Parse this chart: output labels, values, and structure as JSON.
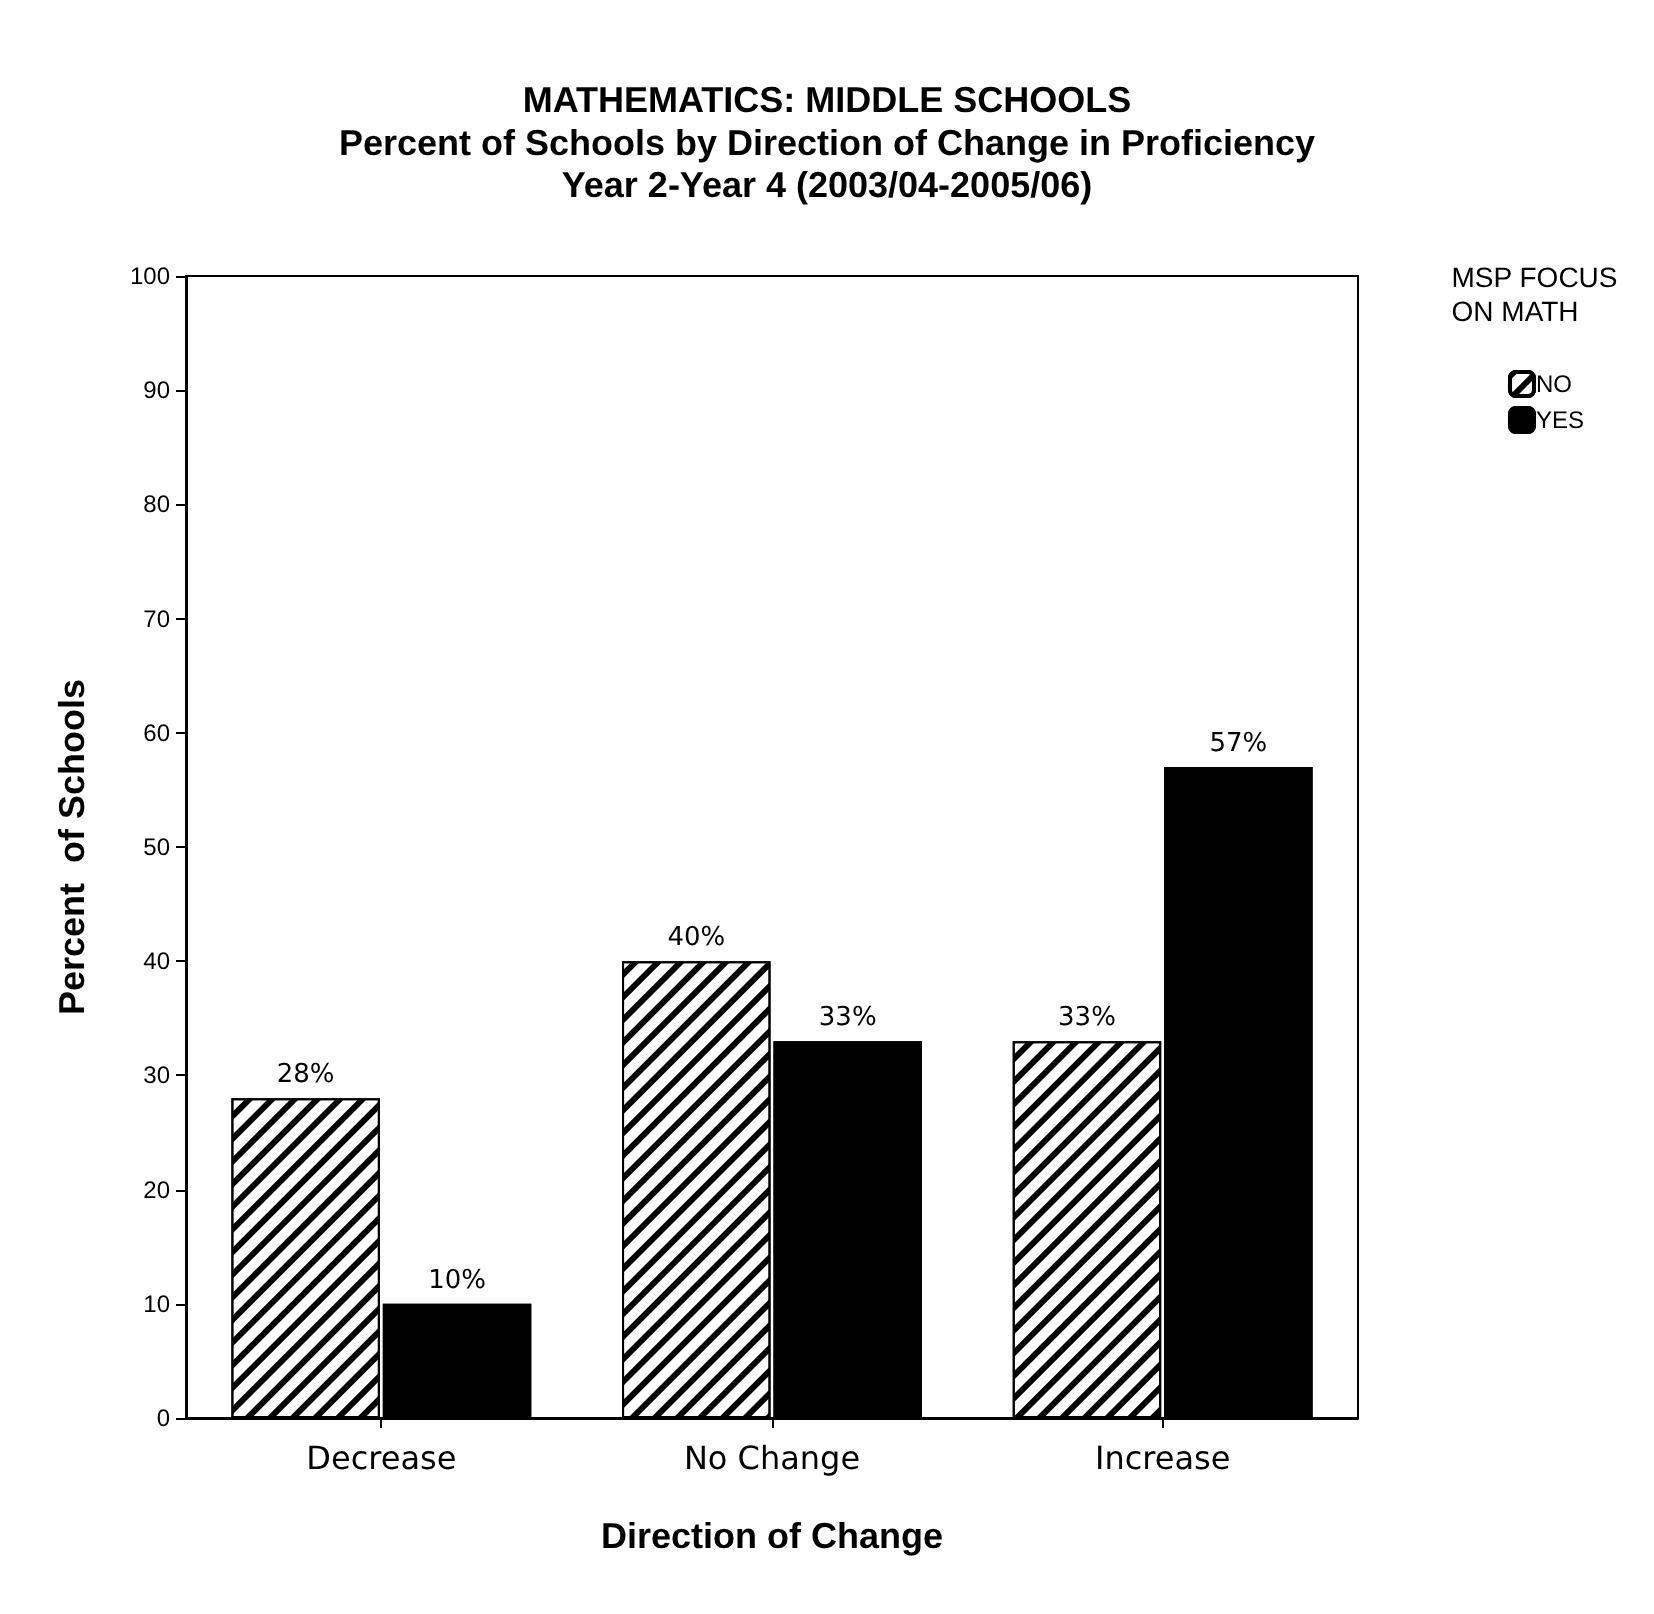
{
  "chart_data": {
    "type": "bar",
    "title": "MATHEMATICS: MIDDLE SCHOOLS",
    "subtitle": "Percent of Schools by Direction of Change in Proficiency\nYear 2-Year 4 (2003/04-2005/06)",
    "xlabel": "Direction of Change",
    "ylabel": "Percent  of Schools",
    "legend_title": "MSP FOCUS\nON MATH",
    "categories": [
      "Decrease",
      "No Change",
      "Increase"
    ],
    "series": [
      {
        "name": "NO",
        "color": "#ffffff",
        "values": [
          28,
          40,
          33
        ],
        "value_labels": [
          "28%",
          "40%",
          "33%"
        ]
      },
      {
        "name": "YES",
        "color": "#000000",
        "values": [
          10,
          33,
          57
        ],
        "value_labels": [
          "10%",
          "33%",
          "57%"
        ]
      }
    ],
    "ylim": [
      0,
      100
    ],
    "yticks": [
      0,
      10,
      20,
      30,
      40,
      50,
      60,
      70,
      80,
      90,
      100
    ],
    "grid": false,
    "legend": "top right"
  }
}
